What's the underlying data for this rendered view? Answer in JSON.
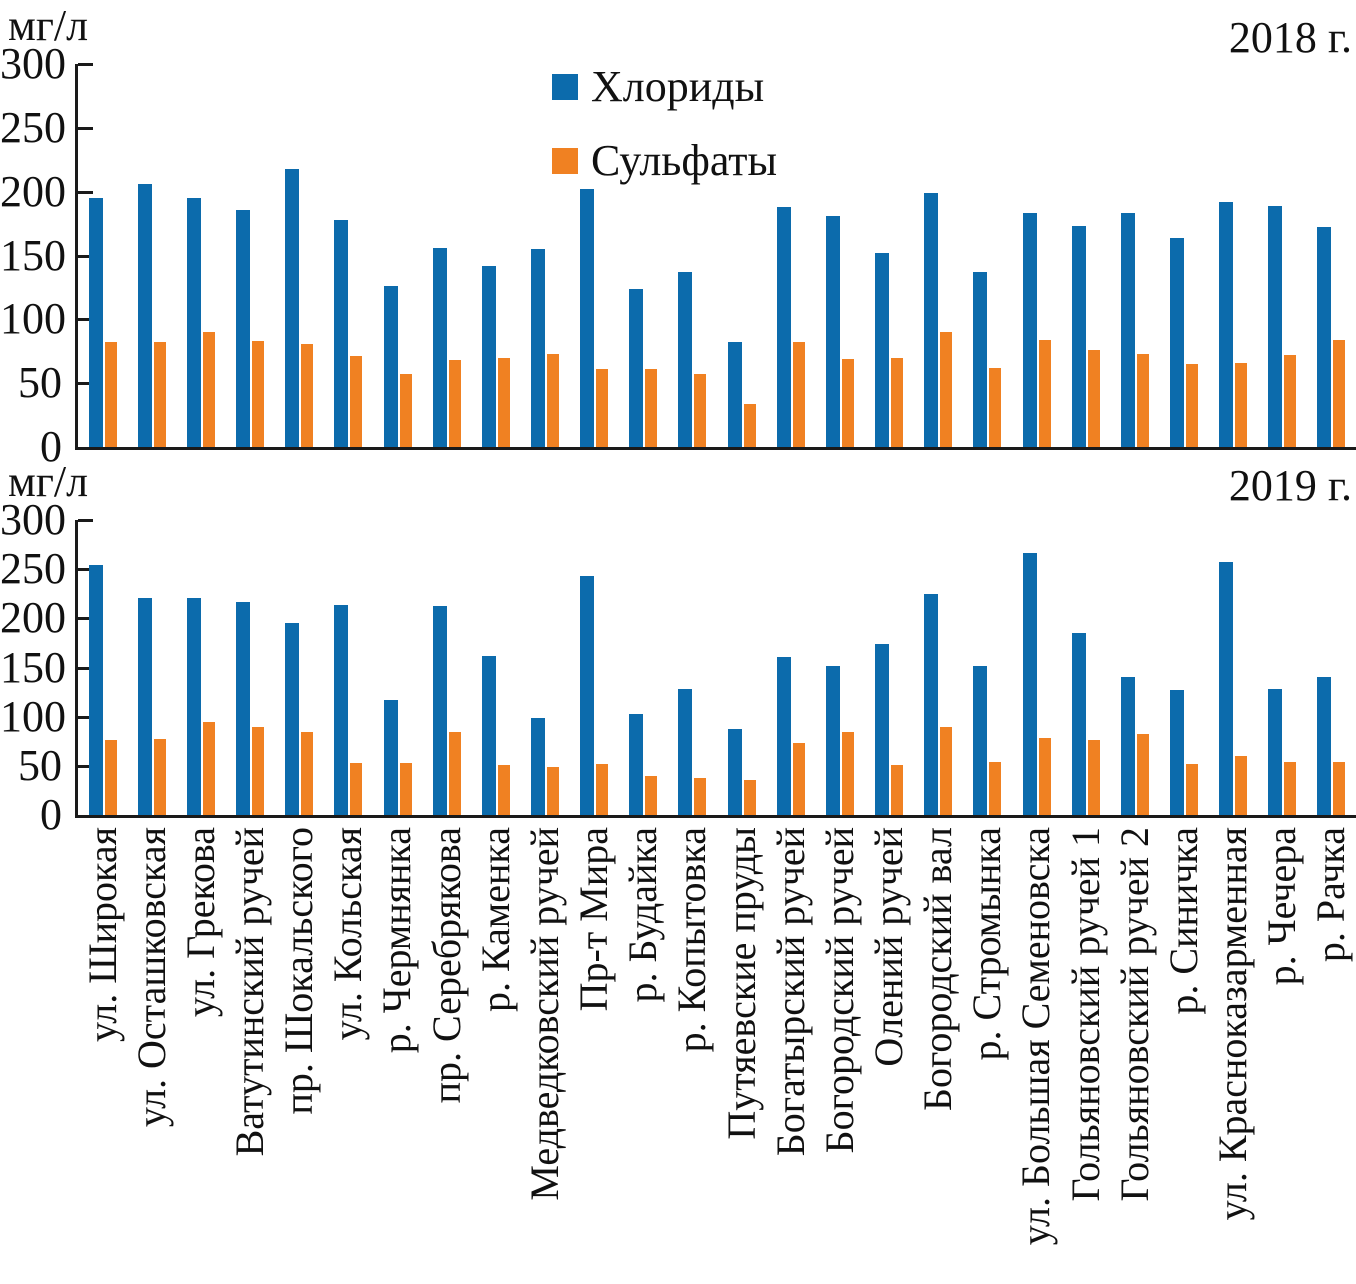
{
  "colors": {
    "chlorides": "#0C6BAC",
    "sulfates": "#F08122",
    "axis": "#1a1a1a"
  },
  "chart_data": {
    "type": "bar",
    "ylabel": "мг/л",
    "ylim": [
      0,
      300
    ],
    "yticks": [
      0,
      50,
      100,
      150,
      200,
      250,
      300
    ],
    "grid": false,
    "legend_position": "top-center-inside-first-chart",
    "categories": [
      "ул. Широкая",
      "ул. Осташковская",
      "ул. Грекова",
      "Ватутинский ручей",
      "пр. Шокальского",
      "ул. Кольская",
      "р. Чермнянка",
      "пр. Серебрякова",
      "р. Каменка",
      "Медведковский ручей",
      "Пр-т Мира",
      "р. Будайка",
      "р. Копытовка",
      "Путяевские пруды",
      "Богатырский ручей",
      "Богородский ручей",
      "Олений ручей",
      "Богородский вал",
      "р. Стромынка",
      "ул. Большая Семеновска",
      "Гольяновский ручей 1",
      "Гольяновский ручей 2",
      "р. Синичка",
      "ул. Красноказарменная",
      "р. Чечера",
      "р. Рачка"
    ],
    "charts": [
      {
        "title": "2018 г.",
        "series": [
          {
            "name": "Хлориды",
            "values": [
              195,
              206,
              195,
              186,
              218,
              178,
              126,
              156,
              142,
              155,
              202,
              124,
              137,
              82,
              188,
              181,
              152,
              199,
              137,
              183,
              173,
              183,
              164,
              192,
              189,
              172
            ]
          },
          {
            "name": "Сульфаты",
            "values": [
              82,
              82,
              90,
              83,
              81,
              71,
              57,
              68,
              70,
              73,
              61,
              61,
              57,
              34,
              82,
              69,
              70,
              90,
              62,
              84,
              76,
              73,
              65,
              66,
              72,
              84
            ]
          }
        ]
      },
      {
        "title": "2019 г.",
        "series": [
          {
            "name": "Хлориды",
            "values": [
              254,
              221,
              221,
              217,
              195,
              214,
              117,
              213,
              162,
              99,
              243,
              103,
              128,
              88,
              161,
              152,
              174,
              225,
              152,
              267,
              185,
              140,
              127,
              257,
              128,
              140
            ]
          },
          {
            "name": "Сульфаты",
            "values": [
              76,
              77,
              95,
              90,
              84,
              53,
              53,
              84,
              51,
              49,
              52,
              40,
              38,
              36,
              73,
              84,
              51,
              90,
              54,
              78,
              76,
              82,
              52,
              60,
              54,
              54
            ]
          }
        ]
      }
    ]
  }
}
